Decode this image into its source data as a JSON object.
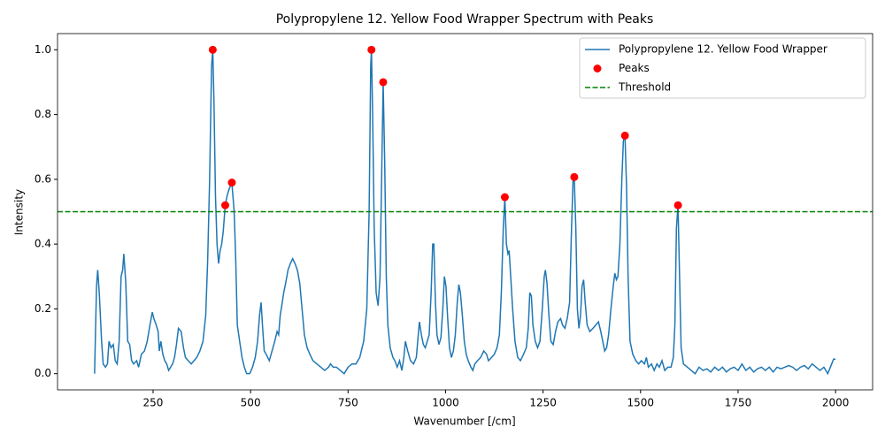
{
  "chart_data": {
    "type": "line",
    "title": "Polypropylene 12. Yellow Food Wrapper Spectrum with Peaks",
    "xlabel": "Wavenumber [/cm]",
    "ylabel": "Intensity",
    "xlim": [
      5,
      2095
    ],
    "ylim": [
      -0.05,
      1.05
    ],
    "xticks": [
      250,
      500,
      750,
      1000,
      1250,
      1500,
      1750,
      2000
    ],
    "yticks": [
      {
        "value": 0,
        "label": "0.0"
      },
      0.2,
      0.4,
      0.6,
      0.8,
      {
        "value": 1,
        "label": "1.0"
      }
    ],
    "legend": "upper right",
    "series": [
      {
        "name": "Polypropylene 12. Yellow Food Wrapper",
        "kind": "line",
        "color": "#1f77b4",
        "x": [
          100,
          105,
          108,
          112,
          118,
          122,
          128,
          133,
          137,
          142,
          148,
          153,
          158,
          163,
          168,
          172,
          175,
          180,
          185,
          190,
          195,
          200,
          208,
          213,
          220,
          228,
          235,
          242,
          248,
          252,
          258,
          263,
          266,
          270,
          275,
          280,
          285,
          290,
          295,
          300,
          305,
          310,
          315,
          322,
          328,
          333,
          340,
          348,
          355,
          362,
          370,
          378,
          385,
          390,
          395,
          400,
          403,
          406,
          410,
          414,
          418,
          422,
          426,
          430,
          435,
          440,
          445,
          452,
          458,
          462,
          466,
          472,
          478,
          484,
          490,
          498,
          505,
          512,
          518,
          523,
          527,
          531,
          535,
          540,
          548,
          555,
          562,
          568,
          572,
          576,
          580,
          585,
          590,
          596,
          602,
          608,
          614,
          620,
          626,
          632,
          638,
          645,
          652,
          660,
          670,
          680,
          690,
          700,
          705,
          712,
          720,
          730,
          740,
          750,
          760,
          770,
          780,
          790,
          798,
          804,
          808,
          810,
          813,
          817,
          822,
          827,
          832,
          836,
          840,
          844,
          848,
          852,
          858,
          865,
          870,
          876,
          882,
          888,
          893,
          897,
          903,
          910,
          918,
          925,
          930,
          933,
          938,
          943,
          948,
          953,
          958,
          963,
          967,
          970,
          974,
          978,
          983,
          988,
          993,
          997,
          1001,
          1005,
          1010,
          1015,
          1020,
          1025,
          1030,
          1034,
          1038,
          1043,
          1048,
          1053,
          1058,
          1065,
          1070,
          1075,
          1082,
          1090,
          1098,
          1105,
          1110,
          1118,
          1125,
          1132,
          1138,
          1143,
          1148,
          1152,
          1156,
          1160,
          1163,
          1167,
          1172,
          1178,
          1185,
          1192,
          1200,
          1207,
          1212,
          1216,
          1220,
          1224,
          1230,
          1236,
          1242,
          1248,
          1253,
          1256,
          1260,
          1265,
          1270,
          1276,
          1282,
          1288,
          1295,
          1300,
          1306,
          1312,
          1318,
          1323,
          1327,
          1330,
          1334,
          1338,
          1342,
          1346,
          1350,
          1354,
          1358,
          1363,
          1370,
          1378,
          1385,
          1392,
          1398,
          1403,
          1408,
          1413,
          1418,
          1424,
          1430,
          1434,
          1438,
          1442,
          1447,
          1452,
          1456,
          1460,
          1464,
          1468,
          1473,
          1480,
          1488,
          1495,
          1502,
          1510,
          1515,
          1520,
          1528,
          1535,
          1542,
          1548,
          1555,
          1562,
          1570,
          1578,
          1584,
          1588,
          1592,
          1596,
          1600,
          1604,
          1610,
          1620,
          1630,
          1640,
          1650,
          1660,
          1670,
          1680,
          1690,
          1700,
          1710,
          1720,
          1730,
          1740,
          1750,
          1760,
          1770,
          1780,
          1790,
          1800,
          1810,
          1820,
          1830,
          1840,
          1850,
          1860,
          1870,
          1880,
          1890,
          1900,
          1910,
          1920,
          1930,
          1940,
          1950,
          1960,
          1970,
          1980,
          1990,
          1995,
          2000
        ],
        "values": [
          0,
          0.27,
          0.32,
          0.25,
          0.1,
          0.03,
          0.02,
          0.03,
          0.1,
          0.08,
          0.09,
          0.04,
          0.03,
          0.1,
          0.3,
          0.32,
          0.37,
          0.28,
          0.1,
          0.09,
          0.04,
          0.03,
          0.04,
          0.02,
          0.06,
          0.07,
          0.1,
          0.15,
          0.19,
          0.17,
          0.15,
          0.13,
          0.07,
          0.1,
          0.06,
          0.04,
          0.03,
          0.01,
          0.02,
          0.03,
          0.05,
          0.09,
          0.14,
          0.13,
          0.08,
          0.05,
          0.04,
          0.03,
          0.04,
          0.05,
          0.07,
          0.1,
          0.18,
          0.35,
          0.6,
          0.95,
          1.0,
          0.85,
          0.55,
          0.4,
          0.34,
          0.38,
          0.4,
          0.44,
          0.52,
          0.55,
          0.57,
          0.59,
          0.5,
          0.35,
          0.15,
          0.1,
          0.05,
          0.02,
          0,
          0,
          0.02,
          0.05,
          0.1,
          0.18,
          0.22,
          0.14,
          0.07,
          0.06,
          0.04,
          0.07,
          0.1,
          0.13,
          0.12,
          0.18,
          0.21,
          0.25,
          0.28,
          0.32,
          0.34,
          0.355,
          0.34,
          0.32,
          0.28,
          0.2,
          0.12,
          0.08,
          0.06,
          0.04,
          0.03,
          0.02,
          0.01,
          0.02,
          0.03,
          0.02,
          0.02,
          0.01,
          0,
          0.02,
          0.03,
          0.03,
          0.05,
          0.1,
          0.2,
          0.5,
          0.95,
          1.0,
          0.8,
          0.45,
          0.25,
          0.21,
          0.3,
          0.6,
          0.9,
          0.65,
          0.3,
          0.15,
          0.08,
          0.05,
          0.04,
          0.02,
          0.04,
          0.01,
          0.05,
          0.1,
          0.07,
          0.04,
          0.03,
          0.05,
          0.12,
          0.16,
          0.12,
          0.09,
          0.08,
          0.1,
          0.12,
          0.25,
          0.4,
          0.4,
          0.22,
          0.12,
          0.09,
          0.11,
          0.2,
          0.3,
          0.27,
          0.18,
          0.08,
          0.05,
          0.07,
          0.12,
          0.22,
          0.275,
          0.25,
          0.18,
          0.1,
          0.06,
          0.04,
          0.02,
          0.01,
          0.03,
          0.04,
          0.05,
          0.07,
          0.06,
          0.04,
          0.05,
          0.06,
          0.08,
          0.12,
          0.25,
          0.45,
          0.545,
          0.4,
          0.37,
          0.38,
          0.3,
          0.2,
          0.1,
          0.05,
          0.04,
          0.06,
          0.08,
          0.14,
          0.25,
          0.24,
          0.15,
          0.1,
          0.08,
          0.1,
          0.2,
          0.3,
          0.32,
          0.28,
          0.18,
          0.1,
          0.09,
          0.13,
          0.16,
          0.17,
          0.15,
          0.14,
          0.17,
          0.22,
          0.45,
          0.6,
          0.607,
          0.45,
          0.2,
          0.14,
          0.18,
          0.27,
          0.29,
          0.22,
          0.15,
          0.13,
          0.14,
          0.15,
          0.16,
          0.13,
          0.1,
          0.07,
          0.08,
          0.12,
          0.2,
          0.27,
          0.31,
          0.29,
          0.3,
          0.4,
          0.6,
          0.72,
          0.735,
          0.58,
          0.3,
          0.1,
          0.06,
          0.04,
          0.03,
          0.04,
          0.03,
          0.05,
          0.02,
          0.03,
          0.01,
          0.03,
          0.02,
          0.04,
          0.01,
          0.02,
          0.02,
          0.05,
          0.15,
          0.45,
          0.52,
          0.3,
          0.08,
          0.03,
          0.02,
          0.01,
          0,
          0.02,
          0.01,
          0.015,
          0.005,
          0.02,
          0.01,
          0.02,
          0.005,
          0.015,
          0.02,
          0.01,
          0.03,
          0.01,
          0.02,
          0.005,
          0.015,
          0.02,
          0.01,
          0.02,
          0.005,
          0.02,
          0.015,
          0.02,
          0.025,
          0.02,
          0.01,
          0.02,
          0.025,
          0.015,
          0.03,
          0.02,
          0.01,
          0.02,
          0,
          0.03,
          0.045,
          0.045
        ]
      },
      {
        "name": "Peaks",
        "kind": "scatter",
        "color": "red",
        "x": [
          403,
          435,
          452,
          810,
          840,
          1152,
          1330,
          1460,
          1596
        ],
        "values": [
          1.0,
          0.52,
          0.59,
          1.0,
          0.9,
          0.545,
          0.607,
          0.735,
          0.52
        ]
      }
    ],
    "threshold": {
      "name": "Threshold",
      "value": 0.5,
      "color": "green",
      "style": "dashed"
    }
  }
}
